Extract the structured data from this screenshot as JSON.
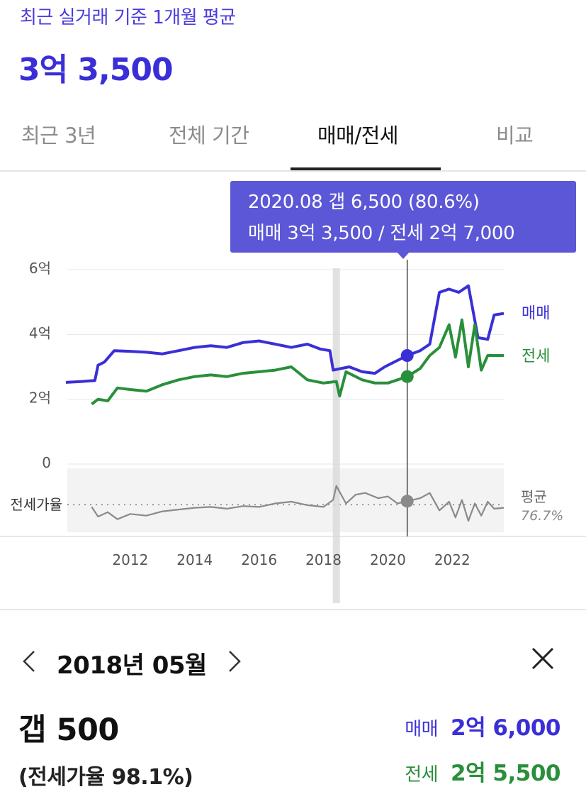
{
  "header": {
    "caption": "최근 실거래 기준 1개월 평균",
    "price": "3억 3,500"
  },
  "tabs": [
    {
      "label": "최근 3년",
      "active": false
    },
    {
      "label": "전체 기간",
      "active": false
    },
    {
      "label": "매매/전세",
      "active": true
    },
    {
      "label": "비교",
      "active": false
    }
  ],
  "tooltip": {
    "line1": "2020.08  갭 6,500 (80.6%)",
    "line2": "매매 3억 3,500 / 전세 2억 7,000"
  },
  "colors": {
    "sale": "#3a2fd6",
    "lease": "#2a8f3b",
    "ratio": "#8a8a8a",
    "tooltip": "#5b57d6"
  },
  "chart_data": {
    "type": "line",
    "yaxis_ticks": [
      "6억",
      "4억",
      "2억",
      "0"
    ],
    "ylim_eok": [
      0,
      6
    ],
    "xaxis_ticks": [
      "2012",
      "2014",
      "2016",
      "2018",
      "2020",
      "2022"
    ],
    "xlim_year": [
      2010.0,
      2023.6
    ],
    "grid": true,
    "series": [
      {
        "name": "매매",
        "unit": "억",
        "points": [
          [
            2010.0,
            2.52
          ],
          [
            2010.5,
            2.55
          ],
          [
            2010.9,
            2.58
          ],
          [
            2011.0,
            3.05
          ],
          [
            2011.2,
            3.15
          ],
          [
            2011.5,
            3.5
          ],
          [
            2012.0,
            3.48
          ],
          [
            2012.5,
            3.45
          ],
          [
            2013.0,
            3.4
          ],
          [
            2013.5,
            3.5
          ],
          [
            2014.0,
            3.6
          ],
          [
            2014.5,
            3.65
          ],
          [
            2015.0,
            3.6
          ],
          [
            2015.5,
            3.75
          ],
          [
            2016.0,
            3.8
          ],
          [
            2016.5,
            3.7
          ],
          [
            2017.0,
            3.6
          ],
          [
            2017.5,
            3.7
          ],
          [
            2017.9,
            3.55
          ],
          [
            2018.2,
            3.5
          ],
          [
            2018.3,
            2.9
          ],
          [
            2018.8,
            3.0
          ],
          [
            2019.2,
            2.85
          ],
          [
            2019.6,
            2.8
          ],
          [
            2019.9,
            3.0
          ],
          [
            2020.3,
            3.2
          ],
          [
            2020.6,
            3.35
          ],
          [
            2021.0,
            3.5
          ],
          [
            2021.3,
            3.7
          ],
          [
            2021.6,
            5.3
          ],
          [
            2021.9,
            5.4
          ],
          [
            2022.2,
            5.3
          ],
          [
            2022.5,
            5.5
          ],
          [
            2022.8,
            3.9
          ],
          [
            2023.1,
            3.85
          ],
          [
            2023.3,
            4.6
          ],
          [
            2023.6,
            4.65
          ]
        ]
      },
      {
        "name": "전세",
        "unit": "억",
        "points": [
          [
            2010.8,
            1.85
          ],
          [
            2011.0,
            2.0
          ],
          [
            2011.3,
            1.95
          ],
          [
            2011.6,
            2.35
          ],
          [
            2012.0,
            2.3
          ],
          [
            2012.5,
            2.25
          ],
          [
            2013.0,
            2.45
          ],
          [
            2013.5,
            2.6
          ],
          [
            2014.0,
            2.7
          ],
          [
            2014.5,
            2.75
          ],
          [
            2015.0,
            2.7
          ],
          [
            2015.5,
            2.8
          ],
          [
            2016.0,
            2.85
          ],
          [
            2016.5,
            2.9
          ],
          [
            2017.0,
            3.0
          ],
          [
            2017.5,
            2.6
          ],
          [
            2018.0,
            2.5
          ],
          [
            2018.4,
            2.55
          ],
          [
            2018.5,
            2.1
          ],
          [
            2018.7,
            2.85
          ],
          [
            2019.2,
            2.6
          ],
          [
            2019.6,
            2.5
          ],
          [
            2020.0,
            2.5
          ],
          [
            2020.3,
            2.6
          ],
          [
            2020.6,
            2.7
          ],
          [
            2021.0,
            2.95
          ],
          [
            2021.3,
            3.35
          ],
          [
            2021.6,
            3.6
          ],
          [
            2021.9,
            4.3
          ],
          [
            2022.1,
            3.3
          ],
          [
            2022.3,
            4.45
          ],
          [
            2022.5,
            3.0
          ],
          [
            2022.7,
            4.3
          ],
          [
            2022.9,
            2.9
          ],
          [
            2023.1,
            3.35
          ],
          [
            2023.3,
            3.35
          ],
          [
            2023.6,
            3.35
          ]
        ]
      },
      {
        "name": "전세가율",
        "unit": "%",
        "points": [
          [
            2010.8,
            74
          ],
          [
            2011.0,
            63
          ],
          [
            2011.3,
            68
          ],
          [
            2011.6,
            60
          ],
          [
            2012.0,
            66
          ],
          [
            2012.5,
            64
          ],
          [
            2013.0,
            69
          ],
          [
            2013.5,
            71
          ],
          [
            2014.0,
            73
          ],
          [
            2014.5,
            74
          ],
          [
            2015.0,
            72
          ],
          [
            2015.5,
            75
          ],
          [
            2016.0,
            74
          ],
          [
            2016.5,
            78
          ],
          [
            2017.0,
            80
          ],
          [
            2017.5,
            76
          ],
          [
            2018.0,
            74
          ],
          [
            2018.3,
            82
          ],
          [
            2018.4,
            98
          ],
          [
            2018.7,
            78
          ],
          [
            2019.0,
            88
          ],
          [
            2019.3,
            90
          ],
          [
            2019.7,
            84
          ],
          [
            2020.0,
            86
          ],
          [
            2020.3,
            78
          ],
          [
            2020.6,
            80.6
          ],
          [
            2021.0,
            84
          ],
          [
            2021.3,
            90
          ],
          [
            2021.6,
            70
          ],
          [
            2021.9,
            80
          ],
          [
            2022.1,
            62
          ],
          [
            2022.3,
            82
          ],
          [
            2022.5,
            58
          ],
          [
            2022.7,
            78
          ],
          [
            2022.9,
            64
          ],
          [
            2023.1,
            80
          ],
          [
            2023.3,
            72
          ],
          [
            2023.6,
            73
          ]
        ]
      }
    ],
    "series_labels": [
      "매매",
      "전세"
    ],
    "ratio_axis_label": "전세가율",
    "ratio_average_label": "평균",
    "ratio_average_value": "76.7%",
    "ratio_average": 76.7,
    "ratio_range_pct": [
      50,
      110
    ],
    "highlight": {
      "date": 2020.6,
      "sale": 3.35,
      "lease": 2.7,
      "ratio": 80.6
    },
    "selected_band": 2018.4
  },
  "detail": {
    "month": "2018년 05월",
    "gap": "갭 500",
    "ratio": "(전세가율 98.1%)",
    "sale_label": "매매",
    "sale_value": "2억 6,000",
    "lease_label": "전세",
    "lease_value": "2억 5,500"
  }
}
